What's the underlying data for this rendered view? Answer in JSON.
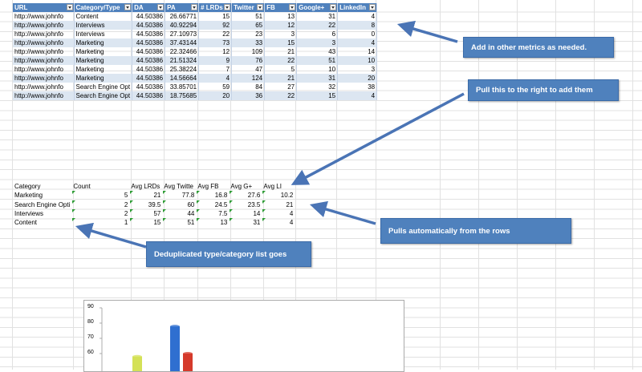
{
  "table": {
    "headers": [
      "URL",
      "Category/Type",
      "DA",
      "PA",
      "# LRDs",
      "Twitter",
      "FB",
      "Google+",
      "LinkedIn"
    ],
    "rows": [
      [
        "http://www.johnfo",
        "Content",
        "44.50386",
        "26.66771",
        "15",
        "51",
        "13",
        "31",
        "4"
      ],
      [
        "http://www.johnfo",
        "Interviews",
        "44.50386",
        "40.92294",
        "92",
        "65",
        "12",
        "22",
        "8"
      ],
      [
        "http://www.johnfo",
        "Interviews",
        "44.50386",
        "27.10973",
        "22",
        "23",
        "3",
        "6",
        "0"
      ],
      [
        "http://www.johnfo",
        "Marketing",
        "44.50386",
        "37.43144",
        "73",
        "33",
        "15",
        "3",
        "4"
      ],
      [
        "http://www.johnfo",
        "Marketing",
        "44.50386",
        "22.32466",
        "12",
        "109",
        "21",
        "43",
        "14"
      ],
      [
        "http://www.johnfo",
        "Marketing",
        "44.50386",
        "21.51324",
        "9",
        "76",
        "22",
        "51",
        "10"
      ],
      [
        "http://www.johnfo",
        "Marketing",
        "44.50386",
        "25.38224",
        "7",
        "47",
        "5",
        "10",
        "3"
      ],
      [
        "http://www.johnfo",
        "Marketing",
        "44.50386",
        "14.56664",
        "4",
        "124",
        "21",
        "31",
        "20"
      ],
      [
        "http://www.johnfo",
        "Search Engine Opt",
        "44.50386",
        "33.85701",
        "59",
        "84",
        "27",
        "32",
        "38"
      ],
      [
        "http://www.johnfo",
        "Search Engine Opt",
        "44.50386",
        "18.75685",
        "20",
        "36",
        "22",
        "15",
        "4"
      ]
    ]
  },
  "summary": {
    "headers": [
      "Category",
      "Count",
      "Avg LRDs",
      "Avg Twitte",
      "Avg FB",
      "Avg G+",
      "Avg LI"
    ],
    "rows": [
      [
        "Marketing",
        "5",
        "21",
        "77.8",
        "16.8",
        "27.6",
        "10.2"
      ],
      [
        "Search Engine Opti",
        "2",
        "39.5",
        "60",
        "24.5",
        "23.5",
        "21"
      ],
      [
        "Interviews",
        "2",
        "57",
        "44",
        "7.5",
        "14",
        "4"
      ],
      [
        "Content",
        "1",
        "15",
        "51",
        "13",
        "31",
        "4"
      ]
    ]
  },
  "callouts": {
    "metrics": "Add in other metrics as needed.",
    "pull_right": "Pull this to the right to add them",
    "pulls_auto": "Pulls automatically from the rows",
    "dedup": "Deduplicated type/category list goes"
  },
  "chart_data": {
    "type": "bar",
    "ylim_visible": [
      55,
      90
    ],
    "ticks": [
      "90",
      "80",
      "70",
      "60"
    ],
    "visible_bars": [
      {
        "color": "#d4e157",
        "value": 58
      },
      {
        "color": "#2f6fd0",
        "value": 77.8
      },
      {
        "color": "#d53a2b",
        "value": 60
      }
    ]
  },
  "colors": {
    "header": "#4f81bd",
    "band": "#dce6f1",
    "callout": "#4f81bd",
    "arrow": "#4a74b5"
  }
}
